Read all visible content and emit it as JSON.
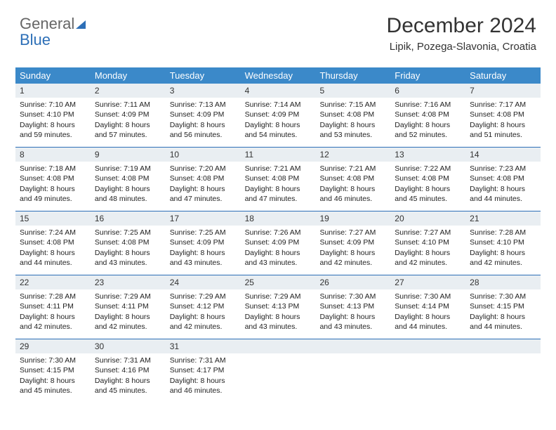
{
  "brand": {
    "part1": "General",
    "part2": "Blue"
  },
  "title": "December 2024",
  "location": "Lipik, Pozega-Slavonia, Croatia",
  "theme": {
    "header_bg": "#3b89c9",
    "header_text": "#ffffff",
    "divider": "#2d6fb7",
    "daynum_bg": "#e9eef2",
    "page_bg": "#ffffff"
  },
  "dayHeaders": [
    "Sunday",
    "Monday",
    "Tuesday",
    "Wednesday",
    "Thursday",
    "Friday",
    "Saturday"
  ],
  "weeks": [
    [
      {
        "n": "1",
        "sr": "7:10 AM",
        "ss": "4:10 PM",
        "dl": "8 hours and 59 minutes."
      },
      {
        "n": "2",
        "sr": "7:11 AM",
        "ss": "4:09 PM",
        "dl": "8 hours and 57 minutes."
      },
      {
        "n": "3",
        "sr": "7:13 AM",
        "ss": "4:09 PM",
        "dl": "8 hours and 56 minutes."
      },
      {
        "n": "4",
        "sr": "7:14 AM",
        "ss": "4:09 PM",
        "dl": "8 hours and 54 minutes."
      },
      {
        "n": "5",
        "sr": "7:15 AM",
        "ss": "4:08 PM",
        "dl": "8 hours and 53 minutes."
      },
      {
        "n": "6",
        "sr": "7:16 AM",
        "ss": "4:08 PM",
        "dl": "8 hours and 52 minutes."
      },
      {
        "n": "7",
        "sr": "7:17 AM",
        "ss": "4:08 PM",
        "dl": "8 hours and 51 minutes."
      }
    ],
    [
      {
        "n": "8",
        "sr": "7:18 AM",
        "ss": "4:08 PM",
        "dl": "8 hours and 49 minutes."
      },
      {
        "n": "9",
        "sr": "7:19 AM",
        "ss": "4:08 PM",
        "dl": "8 hours and 48 minutes."
      },
      {
        "n": "10",
        "sr": "7:20 AM",
        "ss": "4:08 PM",
        "dl": "8 hours and 47 minutes."
      },
      {
        "n": "11",
        "sr": "7:21 AM",
        "ss": "4:08 PM",
        "dl": "8 hours and 47 minutes."
      },
      {
        "n": "12",
        "sr": "7:21 AM",
        "ss": "4:08 PM",
        "dl": "8 hours and 46 minutes."
      },
      {
        "n": "13",
        "sr": "7:22 AM",
        "ss": "4:08 PM",
        "dl": "8 hours and 45 minutes."
      },
      {
        "n": "14",
        "sr": "7:23 AM",
        "ss": "4:08 PM",
        "dl": "8 hours and 44 minutes."
      }
    ],
    [
      {
        "n": "15",
        "sr": "7:24 AM",
        "ss": "4:08 PM",
        "dl": "8 hours and 44 minutes."
      },
      {
        "n": "16",
        "sr": "7:25 AM",
        "ss": "4:08 PM",
        "dl": "8 hours and 43 minutes."
      },
      {
        "n": "17",
        "sr": "7:25 AM",
        "ss": "4:09 PM",
        "dl": "8 hours and 43 minutes."
      },
      {
        "n": "18",
        "sr": "7:26 AM",
        "ss": "4:09 PM",
        "dl": "8 hours and 43 minutes."
      },
      {
        "n": "19",
        "sr": "7:27 AM",
        "ss": "4:09 PM",
        "dl": "8 hours and 42 minutes."
      },
      {
        "n": "20",
        "sr": "7:27 AM",
        "ss": "4:10 PM",
        "dl": "8 hours and 42 minutes."
      },
      {
        "n": "21",
        "sr": "7:28 AM",
        "ss": "4:10 PM",
        "dl": "8 hours and 42 minutes."
      }
    ],
    [
      {
        "n": "22",
        "sr": "7:28 AM",
        "ss": "4:11 PM",
        "dl": "8 hours and 42 minutes."
      },
      {
        "n": "23",
        "sr": "7:29 AM",
        "ss": "4:11 PM",
        "dl": "8 hours and 42 minutes."
      },
      {
        "n": "24",
        "sr": "7:29 AM",
        "ss": "4:12 PM",
        "dl": "8 hours and 42 minutes."
      },
      {
        "n": "25",
        "sr": "7:29 AM",
        "ss": "4:13 PM",
        "dl": "8 hours and 43 minutes."
      },
      {
        "n": "26",
        "sr": "7:30 AM",
        "ss": "4:13 PM",
        "dl": "8 hours and 43 minutes."
      },
      {
        "n": "27",
        "sr": "7:30 AM",
        "ss": "4:14 PM",
        "dl": "8 hours and 44 minutes."
      },
      {
        "n": "28",
        "sr": "7:30 AM",
        "ss": "4:15 PM",
        "dl": "8 hours and 44 minutes."
      }
    ],
    [
      {
        "n": "29",
        "sr": "7:30 AM",
        "ss": "4:15 PM",
        "dl": "8 hours and 45 minutes."
      },
      {
        "n": "30",
        "sr": "7:31 AM",
        "ss": "4:16 PM",
        "dl": "8 hours and 45 minutes."
      },
      {
        "n": "31",
        "sr": "7:31 AM",
        "ss": "4:17 PM",
        "dl": "8 hours and 46 minutes."
      },
      null,
      null,
      null,
      null
    ]
  ],
  "labels": {
    "sunrise": "Sunrise:",
    "sunset": "Sunset:",
    "daylight": "Daylight:"
  }
}
